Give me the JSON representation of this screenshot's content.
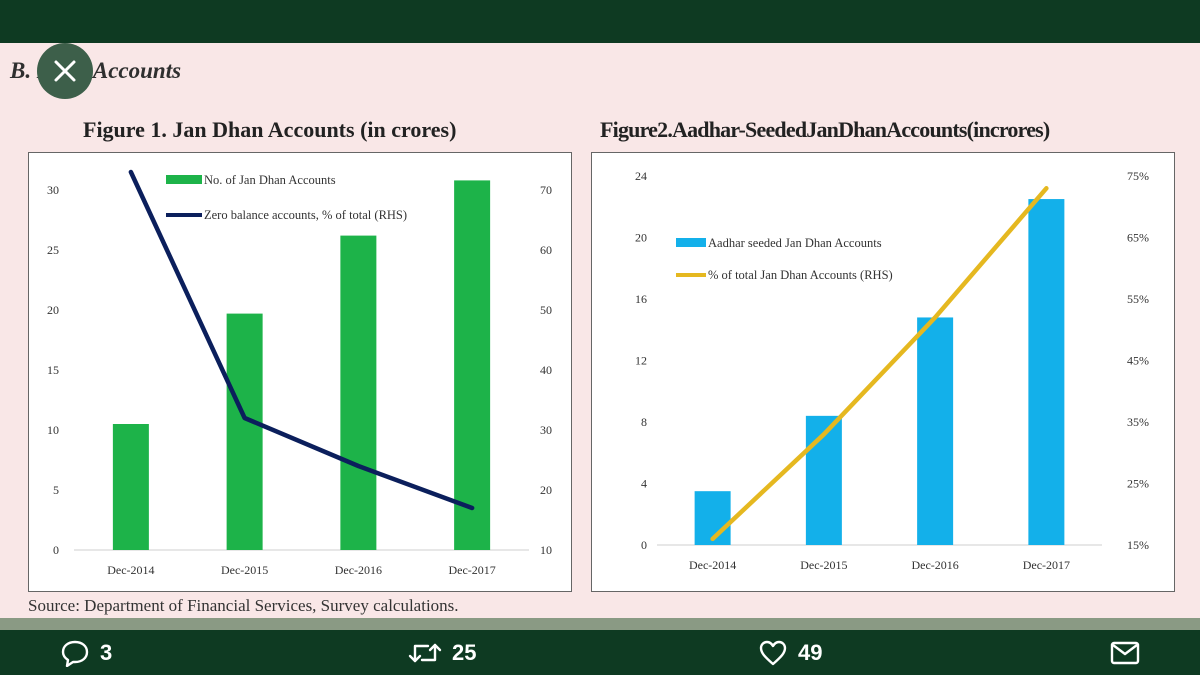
{
  "section": {
    "title": "B. Bank Accounts"
  },
  "figure1": {
    "title": "Figure 1. Jan Dhan Accounts (in crores)"
  },
  "figure2": {
    "title": "Figure2.Aadhar-SeededJanDhanAccounts(incrores)"
  },
  "source": "Source: Department of Financial Services, Survey calculations.",
  "actions": {
    "replies": "3",
    "retweets": "25",
    "likes": "49"
  },
  "icons": {
    "close": "close-icon",
    "reply": "reply-icon",
    "retweet": "retweet-icon",
    "like": "heart-icon",
    "share": "share-icon"
  },
  "colors": {
    "header": "#0e3a22",
    "bar1": "#1db349",
    "line1": "#0b1f5c",
    "bar2": "#13b0ea",
    "line2": "#e5b820"
  },
  "chart_data": [
    {
      "type": "bar",
      "title": "Figure 1. Jan Dhan Accounts (in crores)",
      "categories": [
        "Dec-2014",
        "Dec-2015",
        "Dec-2016",
        "Dec-2017"
      ],
      "series": [
        {
          "name": "No. of Jan Dhan Accounts",
          "axis": "left",
          "kind": "bar",
          "values": [
            10.5,
            19.7,
            26.2,
            30.8
          ]
        },
        {
          "name": "Zero balance accounts, % of total (RHS)",
          "axis": "right",
          "kind": "line",
          "values": [
            73,
            32,
            24,
            17
          ]
        }
      ],
      "ylim_left": [
        0,
        30
      ],
      "yticks_left": [
        "0",
        "5",
        "10",
        "15",
        "20",
        "25",
        "30"
      ],
      "ylim_right": [
        10,
        70
      ],
      "yticks_right": [
        "10",
        "20",
        "30",
        "40",
        "50",
        "60",
        "70"
      ]
    },
    {
      "type": "bar",
      "title": "Figure2.Aadhar-SeededJanDhanAccounts(incrores)",
      "categories": [
        "Dec-2014",
        "Dec-2015",
        "Dec-2016",
        "Dec-2017"
      ],
      "series": [
        {
          "name": "Aadhar seeded Jan Dhan Accounts",
          "axis": "left",
          "kind": "bar",
          "values": [
            3.5,
            8.4,
            14.8,
            22.5
          ]
        },
        {
          "name": "% of total Jan Dhan Accounts (RHS)",
          "axis": "right",
          "kind": "line",
          "values": [
            16,
            33,
            52,
            73
          ]
        }
      ],
      "ylim_left": [
        0,
        24
      ],
      "yticks_left": [
        "0",
        "4",
        "8",
        "12",
        "16",
        "20",
        "24"
      ],
      "ylim_right": [
        15,
        75
      ],
      "yticks_right": [
        "15%",
        "25%",
        "35%",
        "45%",
        "55%",
        "65%",
        "75%"
      ]
    }
  ]
}
